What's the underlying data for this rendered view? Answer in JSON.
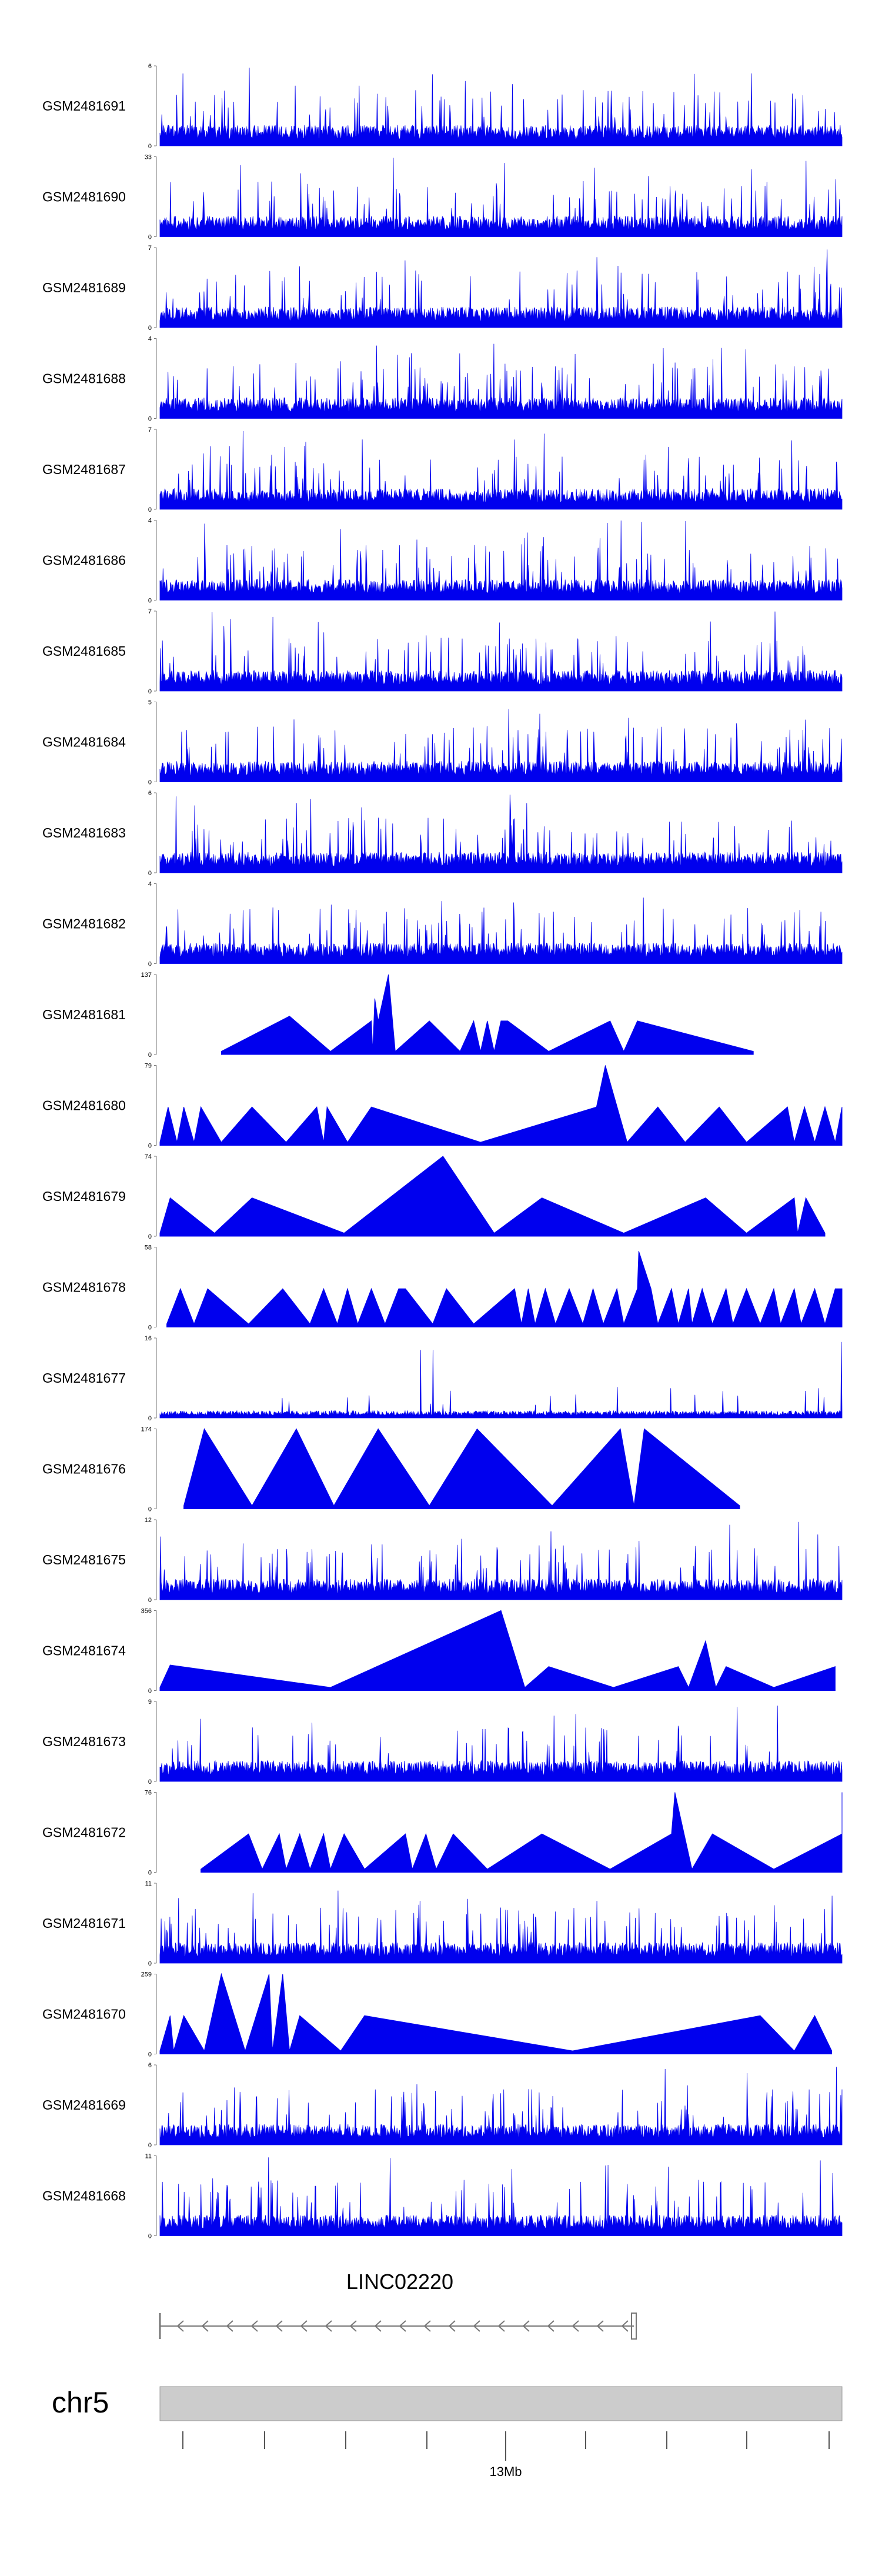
{
  "colors": {
    "signal": "#0000ee",
    "axis": "#555555",
    "ideogram": "#cccccc",
    "gene": "#777777"
  },
  "chart_data": {
    "type": "area",
    "title": "",
    "xlabel": "",
    "ylabel": "",
    "tracks": [
      {
        "name": "GSM2481691",
        "ymax": 6,
        "style": "dense",
        "values": []
      },
      {
        "name": "GSM2481690",
        "ymax": 33,
        "style": "peaks",
        "values": []
      },
      {
        "name": "GSM2481689",
        "ymax": 7,
        "style": "dense",
        "values": []
      },
      {
        "name": "GSM2481688",
        "ymax": 4,
        "style": "dense",
        "values": []
      },
      {
        "name": "GSM2481687",
        "ymax": 7,
        "style": "dense",
        "values": []
      },
      {
        "name": "GSM2481686",
        "ymax": 4,
        "style": "dense",
        "values": []
      },
      {
        "name": "GSM2481685",
        "ymax": 7,
        "style": "dense",
        "values": []
      },
      {
        "name": "GSM2481684",
        "ymax": 5,
        "style": "dense",
        "values": []
      },
      {
        "name": "GSM2481683",
        "ymax": 6,
        "style": "dense",
        "values": []
      },
      {
        "name": "GSM2481682",
        "ymax": 4,
        "style": "dense",
        "values": []
      },
      {
        "name": "GSM2481681",
        "ymax": 137,
        "style": "triangles",
        "values": [
          [
            0.09,
            0.04
          ],
          [
            0.19,
            0.48
          ],
          [
            0.25,
            0.04
          ],
          [
            0.31,
            0.42
          ],
          [
            0.312,
            0.04
          ],
          [
            0.315,
            0.7
          ],
          [
            0.32,
            0.42
          ],
          [
            0.335,
            1.0
          ],
          [
            0.345,
            0.04
          ],
          [
            0.395,
            0.42
          ],
          [
            0.44,
            0.04
          ],
          [
            0.46,
            0.42
          ],
          [
            0.47,
            0.04
          ],
          [
            0.48,
            0.42
          ],
          [
            0.49,
            0.04
          ],
          [
            0.5,
            0.42
          ],
          [
            0.51,
            0.42
          ],
          [
            0.57,
            0.04
          ],
          [
            0.66,
            0.42
          ],
          [
            0.68,
            0.04
          ],
          [
            0.7,
            0.42
          ],
          [
            0.87,
            0.04
          ]
        ]
      },
      {
        "name": "GSM2481680",
        "ymax": 79,
        "style": "triangles",
        "values": [
          [
            0.0,
            0.04
          ],
          [
            0.012,
            0.48
          ],
          [
            0.025,
            0.04
          ],
          [
            0.035,
            0.48
          ],
          [
            0.05,
            0.04
          ],
          [
            0.06,
            0.48
          ],
          [
            0.09,
            0.04
          ],
          [
            0.135,
            0.48
          ],
          [
            0.185,
            0.04
          ],
          [
            0.23,
            0.48
          ],
          [
            0.24,
            0.04
          ],
          [
            0.245,
            0.48
          ],
          [
            0.275,
            0.04
          ],
          [
            0.31,
            0.48
          ],
          [
            0.47,
            0.04
          ],
          [
            0.64,
            0.48
          ],
          [
            0.653,
            1.0
          ],
          [
            0.685,
            0.04
          ],
          [
            0.73,
            0.48
          ],
          [
            0.77,
            0.04
          ],
          [
            0.82,
            0.48
          ],
          [
            0.86,
            0.04
          ],
          [
            0.92,
            0.48
          ],
          [
            0.93,
            0.04
          ],
          [
            0.945,
            0.48
          ],
          [
            0.96,
            0.04
          ],
          [
            0.975,
            0.48
          ],
          [
            0.99,
            0.04
          ],
          [
            1.0,
            0.48
          ]
        ]
      },
      {
        "name": "GSM2481679",
        "ymax": 74,
        "style": "triangles",
        "values": [
          [
            0.0,
            0.04
          ],
          [
            0.015,
            0.48
          ],
          [
            0.08,
            0.04
          ],
          [
            0.135,
            0.48
          ],
          [
            0.27,
            0.04
          ],
          [
            0.415,
            1.0
          ],
          [
            0.49,
            0.04
          ],
          [
            0.56,
            0.48
          ],
          [
            0.68,
            0.04
          ],
          [
            0.8,
            0.48
          ],
          [
            0.86,
            0.04
          ],
          [
            0.93,
            0.48
          ],
          [
            0.935,
            0.04
          ],
          [
            0.947,
            0.48
          ],
          [
            0.975,
            0.04
          ]
        ]
      },
      {
        "name": "GSM2481678",
        "ymax": 58,
        "style": "triangles",
        "values": [
          [
            0.01,
            0.04
          ],
          [
            0.03,
            0.48
          ],
          [
            0.05,
            0.04
          ],
          [
            0.07,
            0.48
          ],
          [
            0.13,
            0.04
          ],
          [
            0.18,
            0.48
          ],
          [
            0.22,
            0.04
          ],
          [
            0.24,
            0.48
          ],
          [
            0.26,
            0.04
          ],
          [
            0.275,
            0.48
          ],
          [
            0.29,
            0.04
          ],
          [
            0.31,
            0.48
          ],
          [
            0.33,
            0.04
          ],
          [
            0.35,
            0.48
          ],
          [
            0.36,
            0.48
          ],
          [
            0.4,
            0.04
          ],
          [
            0.42,
            0.48
          ],
          [
            0.46,
            0.04
          ],
          [
            0.52,
            0.48
          ],
          [
            0.53,
            0.04
          ],
          [
            0.54,
            0.48
          ],
          [
            0.55,
            0.04
          ],
          [
            0.565,
            0.48
          ],
          [
            0.58,
            0.04
          ],
          [
            0.6,
            0.48
          ],
          [
            0.62,
            0.04
          ],
          [
            0.635,
            0.48
          ],
          [
            0.65,
            0.04
          ],
          [
            0.67,
            0.48
          ],
          [
            0.68,
            0.04
          ],
          [
            0.7,
            0.48
          ],
          [
            0.702,
            0.95
          ],
          [
            0.72,
            0.48
          ],
          [
            0.73,
            0.04
          ],
          [
            0.75,
            0.48
          ],
          [
            0.76,
            0.04
          ],
          [
            0.775,
            0.48
          ],
          [
            0.78,
            0.04
          ],
          [
            0.795,
            0.48
          ],
          [
            0.81,
            0.04
          ],
          [
            0.83,
            0.48
          ],
          [
            0.84,
            0.04
          ],
          [
            0.86,
            0.48
          ],
          [
            0.88,
            0.04
          ],
          [
            0.9,
            0.48
          ],
          [
            0.91,
            0.04
          ],
          [
            0.93,
            0.48
          ],
          [
            0.94,
            0.04
          ],
          [
            0.96,
            0.48
          ],
          [
            0.975,
            0.04
          ],
          [
            0.99,
            0.48
          ],
          [
            1.0,
            0.48
          ]
        ]
      },
      {
        "name": "GSM2481677",
        "ymax": 16,
        "style": "sparse",
        "values": []
      },
      {
        "name": "GSM2481676",
        "ymax": 174,
        "style": "triangles",
        "values": [
          [
            0.035,
            0.04
          ],
          [
            0.065,
            1.0
          ],
          [
            0.135,
            0.04
          ],
          [
            0.2,
            1.0
          ],
          [
            0.255,
            0.04
          ],
          [
            0.32,
            1.0
          ],
          [
            0.395,
            0.04
          ],
          [
            0.465,
            1.0
          ],
          [
            0.575,
            0.04
          ],
          [
            0.675,
            1.0
          ],
          [
            0.695,
            0.04
          ],
          [
            0.71,
            1.0
          ],
          [
            0.85,
            0.04
          ]
        ]
      },
      {
        "name": "GSM2481675",
        "ymax": 12,
        "style": "dense",
        "values": []
      },
      {
        "name": "GSM2481674",
        "ymax": 356,
        "style": "triangles",
        "values": [
          [
            0.0,
            0.04
          ],
          [
            0.015,
            0.32
          ],
          [
            0.25,
            0.04
          ],
          [
            0.5,
            1.0
          ],
          [
            0.535,
            0.04
          ],
          [
            0.57,
            0.3
          ],
          [
            0.665,
            0.04
          ],
          [
            0.76,
            0.3
          ],
          [
            0.775,
            0.04
          ],
          [
            0.8,
            0.62
          ],
          [
            0.815,
            0.04
          ],
          [
            0.83,
            0.3
          ],
          [
            0.9,
            0.04
          ],
          [
            0.99,
            0.3
          ]
        ]
      },
      {
        "name": "GSM2481673",
        "ymax": 9,
        "style": "dense",
        "values": []
      },
      {
        "name": "GSM2481672",
        "ymax": 76,
        "style": "triangles",
        "values": [
          [
            0.06,
            0.04
          ],
          [
            0.13,
            0.48
          ],
          [
            0.15,
            0.04
          ],
          [
            0.175,
            0.48
          ],
          [
            0.185,
            0.04
          ],
          [
            0.205,
            0.48
          ],
          [
            0.22,
            0.04
          ],
          [
            0.24,
            0.48
          ],
          [
            0.25,
            0.04
          ],
          [
            0.27,
            0.48
          ],
          [
            0.3,
            0.04
          ],
          [
            0.36,
            0.48
          ],
          [
            0.37,
            0.04
          ],
          [
            0.39,
            0.48
          ],
          [
            0.405,
            0.04
          ],
          [
            0.43,
            0.48
          ],
          [
            0.48,
            0.04
          ],
          [
            0.56,
            0.48
          ],
          [
            0.66,
            0.04
          ],
          [
            0.75,
            0.48
          ],
          [
            0.755,
            1.0
          ],
          [
            0.78,
            0.04
          ],
          [
            0.81,
            0.48
          ],
          [
            0.9,
            0.04
          ],
          [
            1.0,
            0.48
          ],
          [
            1.0,
            1.0
          ]
        ]
      },
      {
        "name": "GSM2481671",
        "ymax": 11,
        "style": "dense",
        "values": []
      },
      {
        "name": "GSM2481670",
        "ymax": 259,
        "style": "triangles",
        "values": [
          [
            0.0,
            0.04
          ],
          [
            0.015,
            0.48
          ],
          [
            0.02,
            0.04
          ],
          [
            0.035,
            0.48
          ],
          [
            0.065,
            0.04
          ],
          [
            0.09,
            1.0
          ],
          [
            0.125,
            0.04
          ],
          [
            0.16,
            1.0
          ],
          [
            0.165,
            0.04
          ],
          [
            0.18,
            1.0
          ],
          [
            0.19,
            0.04
          ],
          [
            0.205,
            0.48
          ],
          [
            0.265,
            0.04
          ],
          [
            0.3,
            0.48
          ],
          [
            0.605,
            0.04
          ],
          [
            0.88,
            0.48
          ],
          [
            0.93,
            0.04
          ],
          [
            0.96,
            0.48
          ],
          [
            0.985,
            0.04
          ]
        ]
      },
      {
        "name": "GSM2481669",
        "ymax": 6,
        "style": "dense",
        "values": []
      },
      {
        "name": "GSM2481668",
        "ymax": 11,
        "style": "dense",
        "values": []
      }
    ],
    "gene": {
      "name": "LINC02220",
      "strand": "-"
    },
    "ideogram": {
      "chromosome": "chr5",
      "axis_ticks": [
        {
          "label": "13Mb"
        }
      ]
    }
  }
}
